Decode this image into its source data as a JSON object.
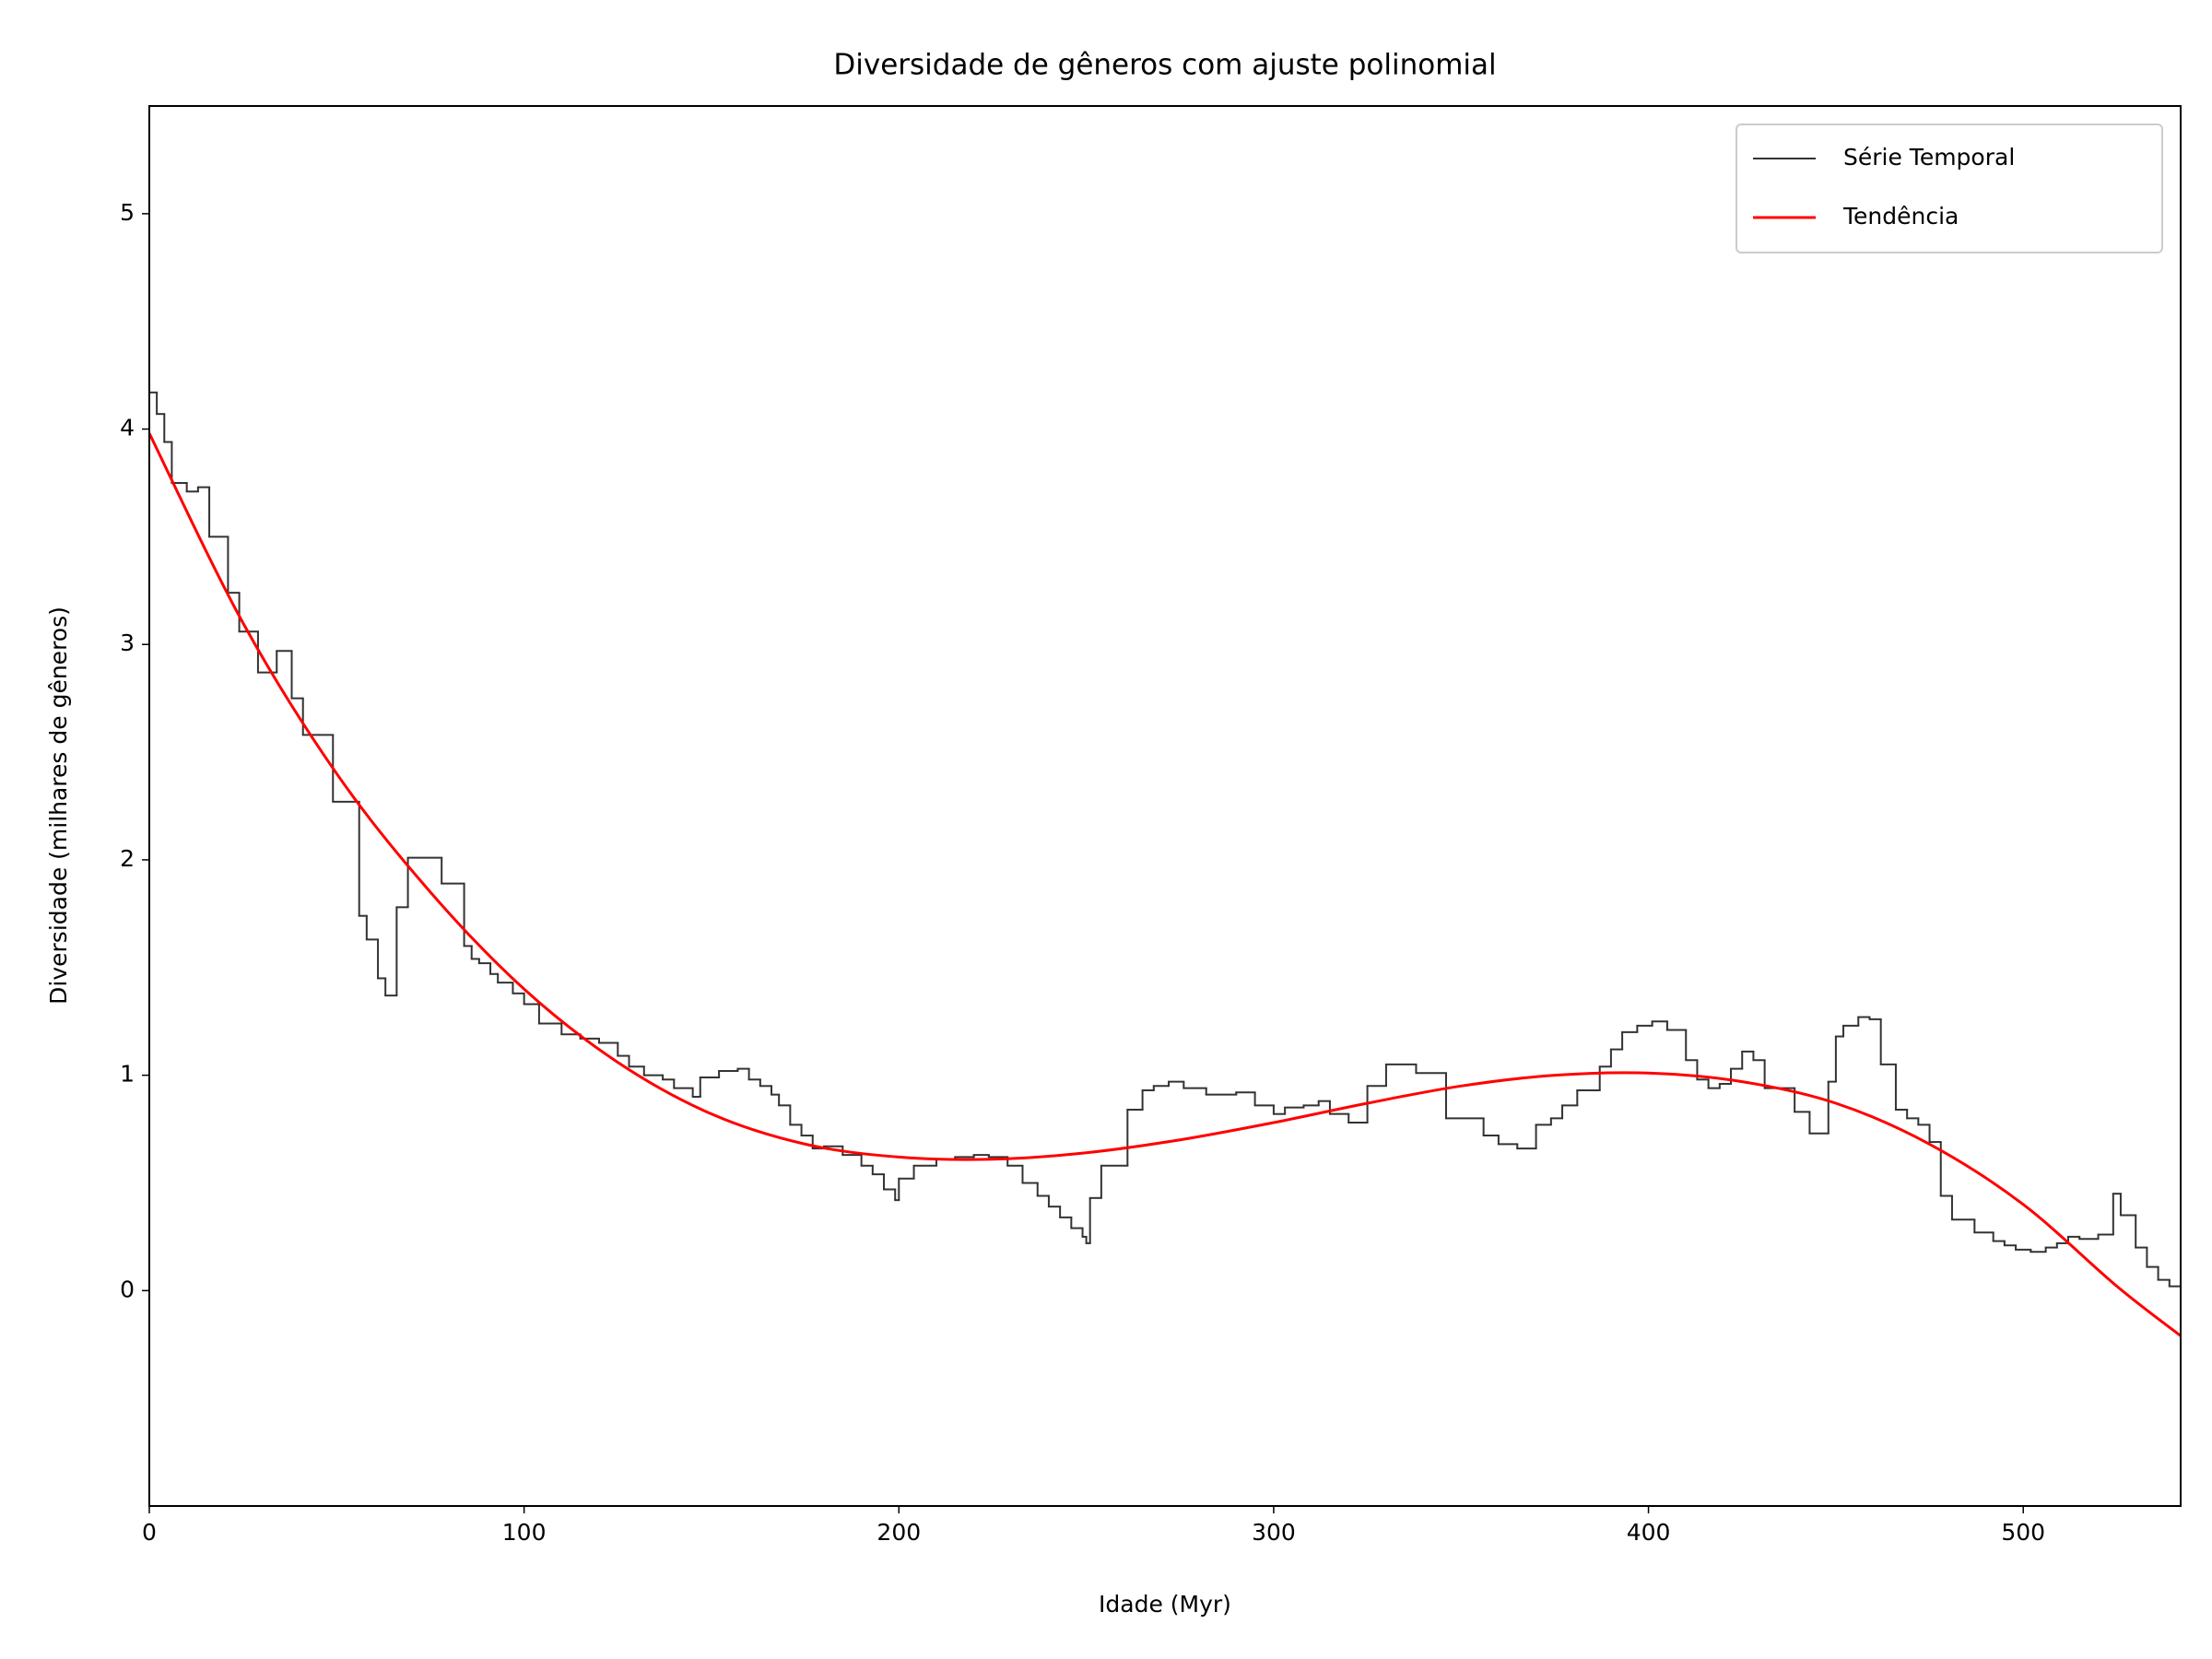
{
  "chart_data": {
    "type": "line",
    "title": "Diversidade de gêneros com ajuste polinomial",
    "xlabel": "Idade (Myr)",
    "ylabel": "Diversidade (milhares de gêneros)",
    "xlim": [
      0,
      542
    ],
    "ylim": [
      -1,
      5.5
    ],
    "xticks": [
      0,
      100,
      200,
      300,
      400,
      500
    ],
    "yticks": [
      0,
      1,
      2,
      3,
      4,
      5
    ],
    "legend": "upper right",
    "series": [
      {
        "name": "Série Temporal",
        "color": "#333333",
        "drawstyle": "steps-post",
        "x": [
          0,
          2,
          4,
          6,
          10,
          13,
          16,
          21,
          24,
          29,
          34,
          38,
          41,
          49,
          56,
          58,
          61,
          63,
          66,
          69,
          78,
          84,
          86,
          88,
          91,
          93,
          97,
          100,
          104,
          110,
          115,
          120,
          125,
          128,
          132,
          137,
          140,
          145,
          147,
          152,
          157,
          160,
          163,
          166,
          168,
          171,
          174,
          177,
          180,
          185,
          190,
          193,
          196,
          199,
          200,
          204,
          210,
          215,
          220,
          224,
          229,
          233,
          237,
          240,
          243,
          246,
          249,
          250,
          251,
          254,
          261,
          265,
          268,
          272,
          276,
          282,
          290,
          295,
          300,
          303,
          308,
          312,
          315,
          320,
          325,
          330,
          338,
          346,
          356,
          360,
          365,
          370,
          374,
          377,
          381,
          387,
          390,
          393,
          397,
          401,
          405,
          410,
          413,
          416,
          419,
          422,
          425,
          428,
          431,
          439,
          443,
          448,
          450,
          452,
          456,
          459,
          462,
          466,
          469,
          472,
          475,
          478,
          481,
          487,
          492,
          495,
          498,
          502,
          506,
          509,
          512,
          515,
          520,
          524,
          526,
          530,
          533,
          536,
          539
        ],
        "values": [
          4.17,
          4.07,
          3.94,
          3.75,
          3.71,
          3.73,
          3.5,
          3.24,
          3.06,
          2.87,
          2.97,
          2.75,
          2.58,
          2.27,
          1.74,
          1.63,
          1.45,
          1.37,
          1.78,
          2.01,
          1.89,
          1.6,
          1.54,
          1.52,
          1.47,
          1.43,
          1.38,
          1.33,
          1.24,
          1.19,
          1.17,
          1.15,
          1.09,
          1.04,
          1.0,
          0.98,
          0.94,
          0.9,
          0.99,
          1.02,
          1.03,
          0.98,
          0.95,
          0.91,
          0.86,
          0.77,
          0.72,
          0.66,
          0.67,
          0.63,
          0.58,
          0.54,
          0.47,
          0.42,
          0.52,
          0.58,
          0.61,
          0.62,
          0.63,
          0.62,
          0.58,
          0.5,
          0.44,
          0.39,
          0.34,
          0.29,
          0.25,
          0.22,
          0.43,
          0.58,
          0.84,
          0.93,
          0.95,
          0.97,
          0.94,
          0.91,
          0.92,
          0.86,
          0.82,
          0.85,
          0.86,
          0.88,
          0.82,
          0.78,
          0.95,
          1.05,
          1.01,
          0.8,
          0.72,
          0.68,
          0.66,
          0.77,
          0.8,
          0.86,
          0.93,
          1.04,
          1.12,
          1.2,
          1.23,
          1.25,
          1.21,
          1.07,
          0.98,
          0.94,
          0.96,
          1.03,
          1.11,
          1.07,
          0.94,
          0.83,
          0.73,
          0.97,
          1.18,
          1.23,
          1.27,
          1.26,
          1.05,
          0.84,
          0.8,
          0.77,
          0.69,
          0.44,
          0.33,
          0.27,
          0.23,
          0.21,
          0.19,
          0.18,
          0.2,
          0.22,
          0.25,
          0.24,
          0.26,
          0.45,
          0.35,
          0.2,
          0.11,
          0.05,
          0.02
        ]
      },
      {
        "name": "Tendência",
        "color": "#ff0000",
        "drawstyle": "default",
        "x": [
          0,
          25,
          50,
          75,
          100,
          125,
          150,
          175,
          200,
          225,
          250,
          275,
          300,
          325,
          350,
          375,
          400,
          425,
          450,
          475,
          500,
          525,
          542
        ],
        "values": [
          3.98,
          3.1,
          2.4,
          1.85,
          1.4,
          1.06,
          0.82,
          0.68,
          0.62,
          0.61,
          0.64,
          0.7,
          0.78,
          0.87,
          0.95,
          1.0,
          1.01,
          0.97,
          0.87,
          0.68,
          0.4,
          0.02,
          -0.21
        ]
      }
    ]
  }
}
